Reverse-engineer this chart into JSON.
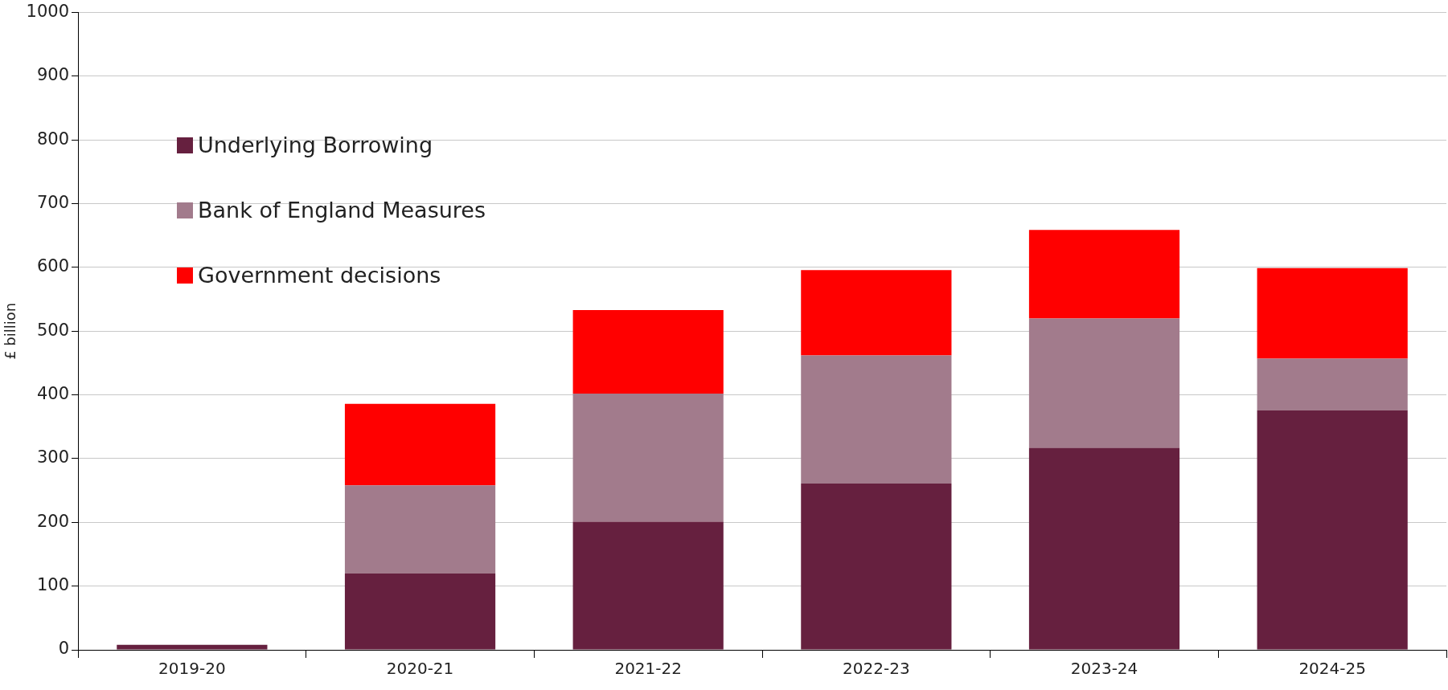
{
  "chart_data": {
    "type": "bar",
    "stacked": true,
    "ylabel": "£ billion",
    "categories": [
      "2019-20",
      "2020-21",
      "2021-22",
      "2022-23",
      "2023-24",
      "2024-25"
    ],
    "series": [
      {
        "name": "Underlying Borrowing",
        "color": "#66203f",
        "values": [
          8,
          120,
          201,
          261,
          317,
          376
        ]
      },
      {
        "name": "Bank of England Measures",
        "color": "#a27b8c",
        "values": [
          null,
          138,
          201,
          201,
          203,
          81
        ]
      },
      {
        "name": "Government decisions",
        "color": "#ff0000",
        "values": [
          null,
          128,
          131,
          134,
          139,
          142
        ]
      }
    ],
    "ylim": [
      0,
      1000
    ],
    "yticks": [
      0,
      100,
      200,
      300,
      400,
      500,
      600,
      700,
      800,
      900,
      1000
    ],
    "grid": "y",
    "legend": "top left"
  }
}
